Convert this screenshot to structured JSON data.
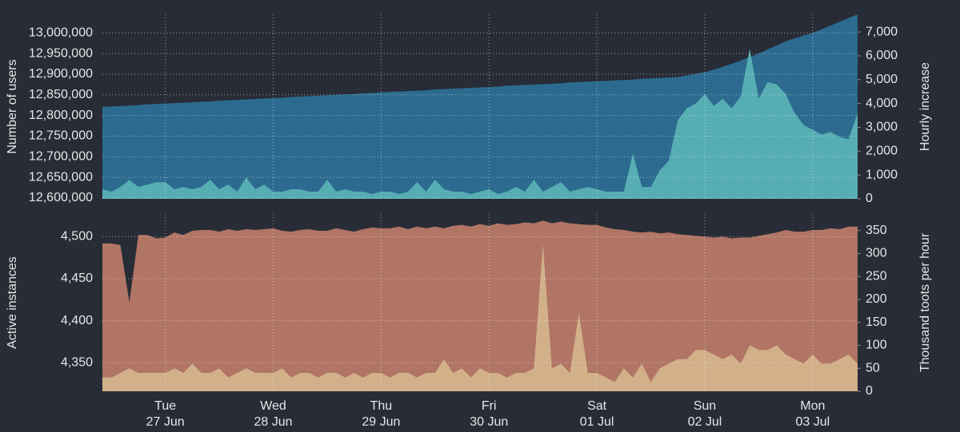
{
  "chart_data": [
    {
      "type": "area",
      "series": [
        {
          "name": "Number of users",
          "color": "#2c6b8f",
          "label_color": "#62b3cc",
          "values": [
            12821000,
            12822000,
            12823000,
            12824000,
            12825000,
            12827000,
            12828000,
            12829000,
            12830000,
            12831000,
            12832000,
            12833000,
            12834000,
            12836000,
            12837000,
            12838000,
            12839000,
            12840000,
            12841000,
            12842000,
            12843000,
            12845000,
            12846000,
            12847000,
            12848000,
            12849000,
            12850000,
            12851000,
            12852000,
            12854000,
            12855000,
            12856000,
            12857000,
            12858000,
            12859000,
            12860000,
            12861000,
            12863000,
            12864000,
            12865000,
            12866000,
            12867000,
            12868000,
            12869000,
            12870000,
            12872000,
            12873000,
            12874000,
            12875000,
            12876000,
            12877000,
            12878000,
            12880000,
            12881000,
            12882000,
            12883000,
            12884000,
            12885000,
            12886000,
            12887000,
            12889000,
            12890000,
            12891000,
            12892000,
            12893000,
            12897000,
            12901000,
            12905000,
            12911000,
            12918000,
            12925000,
            12933000,
            12942000,
            12950000,
            12960000,
            12970000,
            12980000,
            12987000,
            12994000,
            13000000,
            13009000,
            13018000,
            13027000,
            13036000,
            13045000
          ]
        },
        {
          "name": "Hourly increase",
          "axis": "y2",
          "color": "#56adb3",
          "label_color": "#7fd3c6",
          "values": [
            400,
            300,
            500,
            800,
            500,
            600,
            700,
            700,
            400,
            500,
            400,
            500,
            800,
            400,
            600,
            300,
            900,
            400,
            600,
            300,
            300,
            400,
            400,
            300,
            300,
            800,
            300,
            400,
            300,
            300,
            200,
            300,
            300,
            200,
            300,
            700,
            300,
            800,
            400,
            300,
            300,
            200,
            300,
            400,
            200,
            300,
            500,
            300,
            800,
            300,
            500,
            700,
            300,
            400,
            500,
            400,
            300,
            300,
            300,
            1900,
            500,
            500,
            1200,
            1600,
            3300,
            3800,
            4000,
            4400,
            3900,
            4200,
            3800,
            4300,
            6300,
            4200,
            4900,
            4800,
            4400,
            3600,
            3100,
            2900,
            2700,
            2800,
            2600,
            2500,
            3600
          ]
        }
      ],
      "ylim": [
        12598000,
        13045000
      ],
      "yticks": [
        {
          "value": 12600000,
          "label": "12,600,000"
        },
        {
          "value": 12650000,
          "label": "12,650,000"
        },
        {
          "value": 12700000,
          "label": "12,700,000"
        },
        {
          "value": 12750000,
          "label": "12,750,000"
        },
        {
          "value": 12800000,
          "label": "12,800,000"
        },
        {
          "value": 12850000,
          "label": "12,850,000"
        },
        {
          "value": 12900000,
          "label": "12,900,000"
        },
        {
          "value": 12950000,
          "label": "12,950,000"
        },
        {
          "value": 13000000,
          "label": "13,000,000"
        }
      ],
      "y2lim": [
        0,
        7740
      ],
      "y2ticks": [
        0,
        {
          "value": 1000,
          "label": "1,000"
        },
        {
          "value": 2000,
          "label": "2,000"
        },
        {
          "value": 3000,
          "label": "3,000"
        },
        {
          "value": 4000,
          "label": "4,000"
        },
        {
          "value": 5000,
          "label": "5,000"
        },
        {
          "value": 6000,
          "label": "6,000"
        },
        {
          "value": 7000,
          "label": "7,000"
        }
      ],
      "grid": true
    },
    {
      "type": "area",
      "categories": [
        null,
        null,
        null,
        null,
        null,
        null,
        null,
        [
          "Tue",
          "27 Jun"
        ],
        null,
        null,
        null,
        null,
        null,
        null,
        null,
        null,
        null,
        null,
        null,
        [
          "Wed",
          "28 Jun"
        ],
        null,
        null,
        null,
        null,
        null,
        null,
        null,
        null,
        null,
        null,
        null,
        [
          "Thu",
          "29 Jun"
        ],
        null,
        null,
        null,
        null,
        null,
        null,
        null,
        null,
        null,
        null,
        null,
        [
          "Fri",
          "30 Jun"
        ],
        null,
        null,
        null,
        null,
        null,
        null,
        null,
        null,
        null,
        null,
        null,
        [
          "Sat",
          "01 Jul"
        ],
        null,
        null,
        null,
        null,
        null,
        null,
        null,
        null,
        null,
        null,
        null,
        [
          "Sun",
          "02 Jul"
        ],
        null,
        null,
        null,
        null,
        null,
        null,
        null,
        null,
        null,
        null,
        null,
        [
          "Mon",
          "03 Jul"
        ],
        null,
        null,
        null,
        null,
        null
      ],
      "series": [
        {
          "name": "Active instances",
          "color": "#b07565",
          "label_color": "#d9826c",
          "values": [
            4492,
            4492,
            4490,
            4422,
            4502,
            4502,
            4498,
            4499,
            4505,
            4502,
            4507,
            4508,
            4508,
            4506,
            4509,
            4507,
            4509,
            4508,
            4509,
            4510,
            4507,
            4506,
            4508,
            4509,
            4507,
            4507,
            4510,
            4508,
            4506,
            4509,
            4511,
            4510,
            4510,
            4512,
            4509,
            4512,
            4510,
            4512,
            4510,
            4513,
            4514,
            4512,
            4515,
            4513,
            4516,
            4514,
            4515,
            4517,
            4516,
            4519,
            4516,
            4518,
            4516,
            4515,
            4514,
            4514,
            4511,
            4509,
            4508,
            4506,
            4505,
            4506,
            4504,
            4505,
            4503,
            4502,
            4501,
            4500,
            4499,
            4500,
            4498,
            4499,
            4499,
            4501,
            4503,
            4505,
            4508,
            4506,
            4506,
            4508,
            4508,
            4510,
            4509,
            4512,
            4512
          ]
        },
        {
          "name": "Thousand toots per hour",
          "axis": "y2",
          "color": "#d2b08a",
          "label_color": "#d6cf9e",
          "values": [
            30,
            30,
            40,
            50,
            40,
            40,
            40,
            40,
            50,
            40,
            60,
            40,
            40,
            50,
            30,
            40,
            50,
            40,
            40,
            40,
            50,
            30,
            40,
            40,
            30,
            40,
            40,
            30,
            40,
            30,
            40,
            40,
            30,
            40,
            40,
            30,
            40,
            40,
            70,
            40,
            50,
            30,
            50,
            40,
            40,
            30,
            40,
            40,
            50,
            320,
            50,
            60,
            40,
            170,
            40,
            40,
            30,
            20,
            50,
            30,
            60,
            20,
            50,
            60,
            70,
            70,
            90,
            90,
            80,
            70,
            80,
            60,
            100,
            90,
            90,
            100,
            80,
            70,
            60,
            80,
            60,
            60,
            70,
            80,
            60
          ]
        }
      ],
      "ylim": [
        4316,
        4527
      ],
      "yticks": [
        {
          "value": 4350,
          "label": "4,350"
        },
        {
          "value": 4400,
          "label": "4,400"
        },
        {
          "value": 4450,
          "label": "4,450"
        },
        {
          "value": 4500,
          "label": "4,500"
        }
      ],
      "y2lim": [
        0,
        386
      ],
      "y2ticks": [
        0,
        50,
        100,
        150,
        200,
        250,
        300,
        350
      ],
      "grid": true
    }
  ]
}
